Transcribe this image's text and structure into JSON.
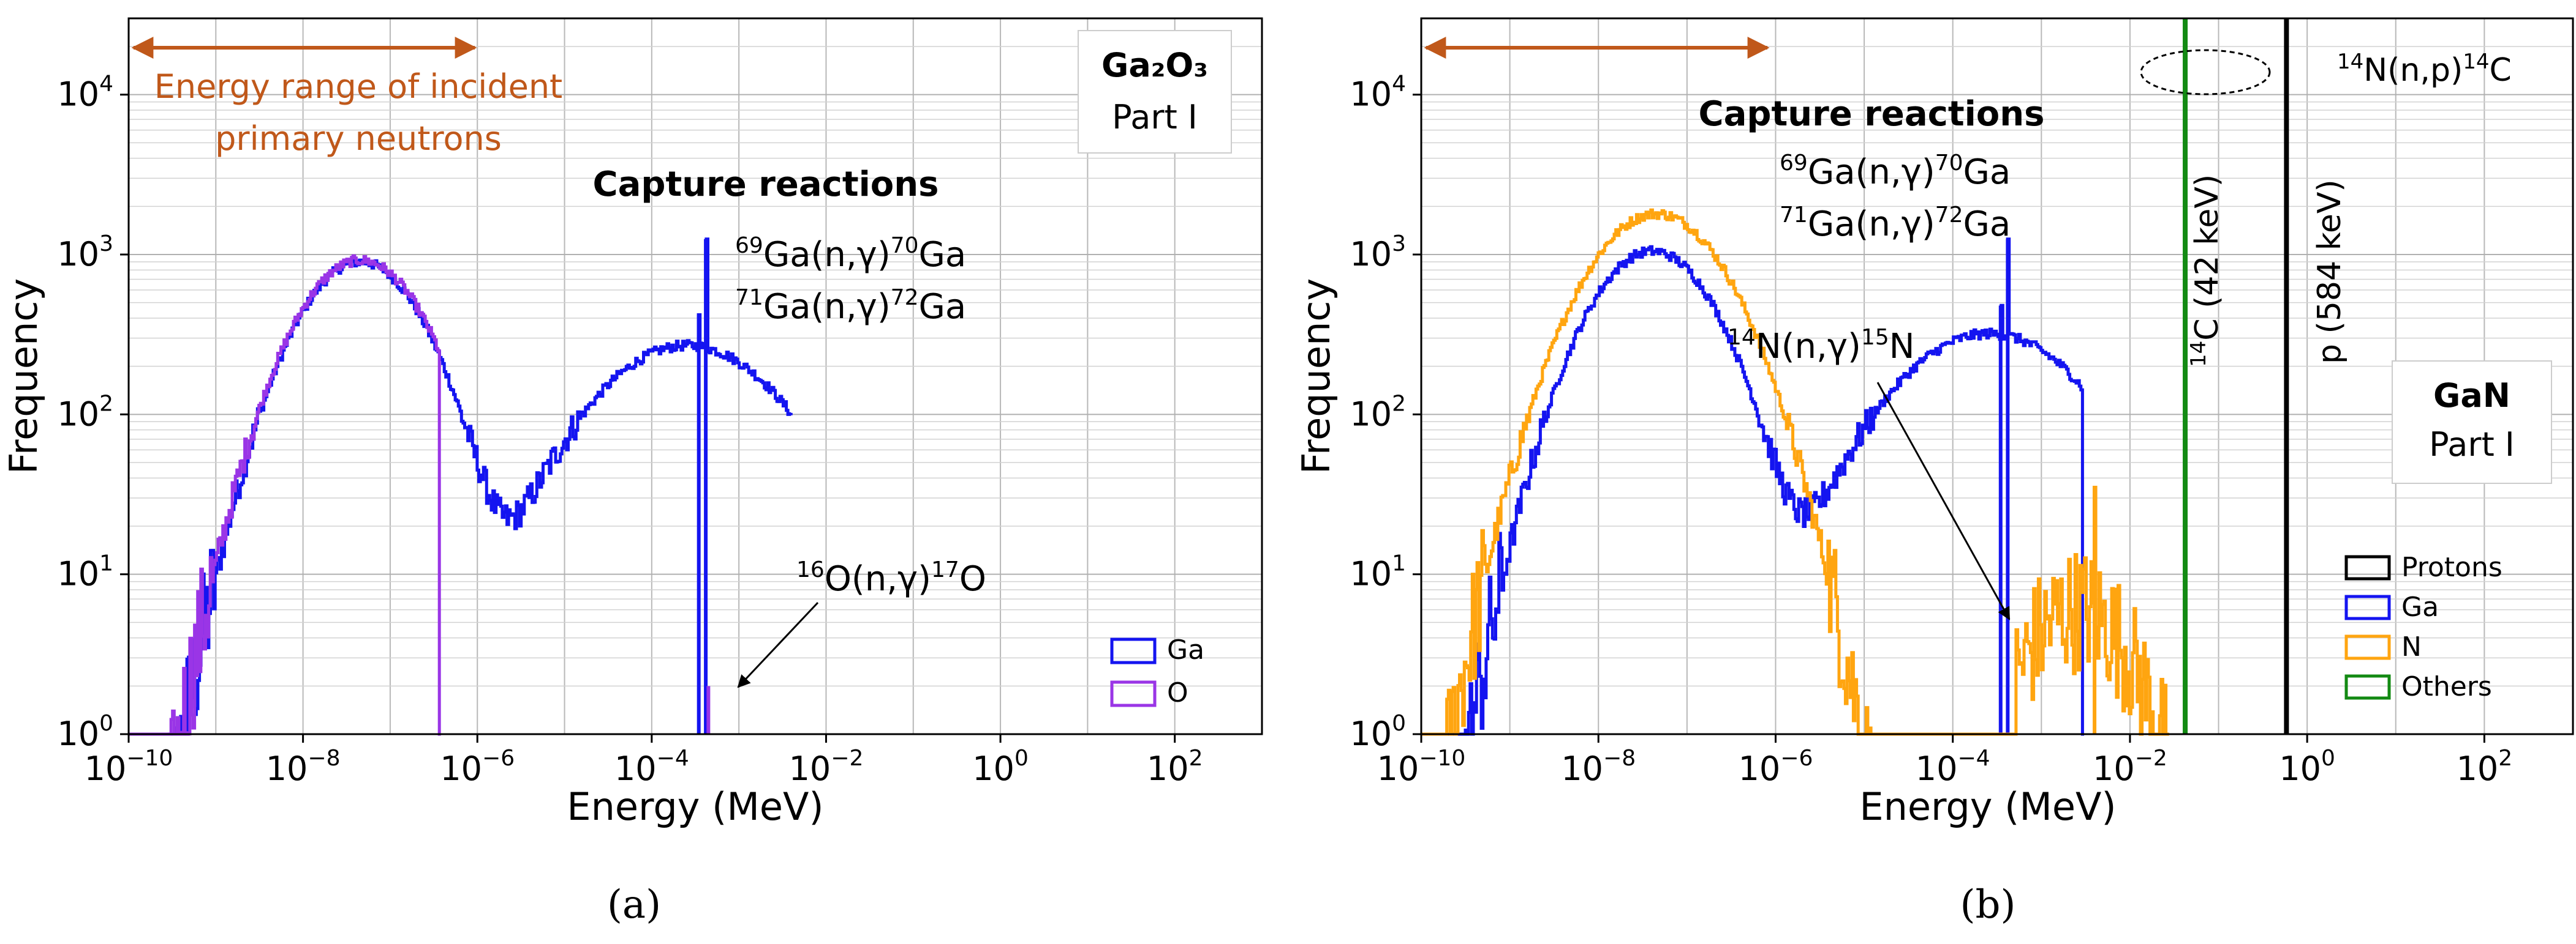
{
  "colors": {
    "ga": "#1414f0",
    "o": "#9a35e6",
    "n": "#ffa510",
    "protons": "#000000",
    "others": "#138a13",
    "arrow": "#c0581a"
  },
  "chart_data": [
    {
      "type": "histogram-step",
      "panel_label": "(a)",
      "xlabel": "Energy (MeV)",
      "ylabel": "Frequency",
      "xscale": "log",
      "yscale": "log",
      "xlim": [
        1e-10,
        1000.0
      ],
      "ylim": [
        1,
        30000
      ],
      "x_ticks": [
        "10^-10",
        "10^-8",
        "10^-6",
        "10^-4",
        "10^-2",
        "10^0",
        "10^2"
      ],
      "y_ticks": [
        "10^0",
        "10^1",
        "10^2",
        "10^3",
        "10^4"
      ],
      "grid": true,
      "legend_position": "bottom-right",
      "material": "Ga2O3",
      "material_label": "Ga₂O₃",
      "part_label": "Part I",
      "energy_range_text_line1": "Energy range of incident",
      "energy_range_text_line2": "primary neutrons",
      "energy_range": [
        1e-10,
        1e-06
      ],
      "capture_title": "Capture reactions",
      "annotations": [
        {
          "id": "ga69",
          "pre": "69",
          "a": "Ga(n,",
          "g": "γ",
          "b": ")",
          "post": "70",
          "c": "Ga"
        },
        {
          "id": "ga71",
          "pre": "71",
          "a": "Ga(n,",
          "g": "γ",
          "b": ")",
          "post": "72",
          "c": "Ga"
        },
        {
          "id": "o16",
          "pre": "16",
          "a": "O(n,",
          "g": "γ",
          "b": ")",
          "post": "17",
          "c": "O"
        }
      ],
      "series": [
        {
          "name": "Ga",
          "color_key": "ga",
          "peaks": [
            {
              "center_log": -7.35,
              "width": 0.55,
              "peak": 900
            },
            {
              "center_log": -3.6,
              "width": 0.85,
              "peak": 270,
              "cut_hi": -2.4
            }
          ],
          "spikes": [
            {
              "x_log": -3.38,
              "value": 1250
            },
            {
              "x_log": -3.46,
              "value": 420
            }
          ],
          "min_log": -9.8,
          "max_log": -2.4
        },
        {
          "name": "O",
          "color_key": "o",
          "peaks": [
            {
              "center_log": -7.35,
              "width": 0.56,
              "peak": 920,
              "cut_hi": -6.45
            }
          ],
          "spikes": [
            {
              "x_log": -3.35,
              "value": 2
            }
          ],
          "min_log": -10.0,
          "max_log": -6.4
        }
      ]
    },
    {
      "type": "histogram-step",
      "panel_label": "(b)",
      "xlabel": "Energy (MeV)",
      "ylabel": "Frequency",
      "xscale": "log",
      "yscale": "log",
      "xlim": [
        1e-10,
        1000.0
      ],
      "ylim": [
        1,
        30000
      ],
      "x_ticks": [
        "10^-10",
        "10^-8",
        "10^-6",
        "10^-4",
        "10^-2",
        "10^0",
        "10^2"
      ],
      "y_ticks": [
        "10^0",
        "10^1",
        "10^2",
        "10^3",
        "10^4"
      ],
      "grid": true,
      "legend_position": "bottom-right",
      "material": "GaN",
      "material_label": "GaN",
      "part_label": "Part I",
      "energy_range": [
        1e-10,
        1e-06
      ],
      "capture_title": "Capture reactions",
      "annotations": [
        {
          "id": "ga69",
          "pre": "69",
          "a": "Ga(n,",
          "g": "γ",
          "b": ")",
          "post": "70",
          "c": "Ga"
        },
        {
          "id": "ga71",
          "pre": "71",
          "a": "Ga(n,",
          "g": "γ",
          "b": ")",
          "post": "72",
          "c": "Ga"
        },
        {
          "id": "n14",
          "pre": "14",
          "a": "N(n,",
          "g": "γ",
          "b": ")",
          "post": "15",
          "c": "N"
        },
        {
          "id": "n14p",
          "pre": "14",
          "a": "N(n,p)",
          "g": "",
          "b": "",
          "post": "14",
          "c": "C"
        }
      ],
      "vlines": [
        {
          "name": "14C (42 keV)",
          "x": 0.042,
          "color_key": "others",
          "label_pre": "14",
          "label": "C (42 keV)"
        },
        {
          "name": "p (584 keV)",
          "x": 0.584,
          "color_key": "protons",
          "label_pre": "",
          "label": "p (584 keV)"
        }
      ],
      "series": [
        {
          "name": "Protons",
          "color_key": "protons",
          "peaks": [],
          "spikes": [],
          "legend_only": true
        },
        {
          "name": "Ga",
          "color_key": "ga",
          "peaks": [
            {
              "center_log": -7.4,
              "width": 0.55,
              "peak": 1050
            },
            {
              "center_log": -3.6,
              "width": 0.85,
              "peak": 320,
              "cut_hi": -2.55
            }
          ],
          "spikes": [
            {
              "x_log": -3.38,
              "value": 1250
            },
            {
              "x_log": -3.46,
              "value": 480
            }
          ],
          "min_log": -9.7,
          "max_log": -2.5
        },
        {
          "name": "N",
          "color_key": "n",
          "peaks": [
            {
              "center_log": -7.35,
              "width": 0.6,
              "peak": 1800
            },
            {
              "center_log": -2.6,
              "width": 0.5,
              "peak": 6,
              "cut_lo": -3.3,
              "cut_hi": -1.6
            }
          ],
          "spikes": [
            {
              "x_log": -2.4,
              "value": 35
            }
          ],
          "min_log": -10.0,
          "max_log": -1.55
        },
        {
          "name": "Others",
          "color_key": "others",
          "peaks": [],
          "spikes": [],
          "legend_only": true
        }
      ]
    }
  ]
}
